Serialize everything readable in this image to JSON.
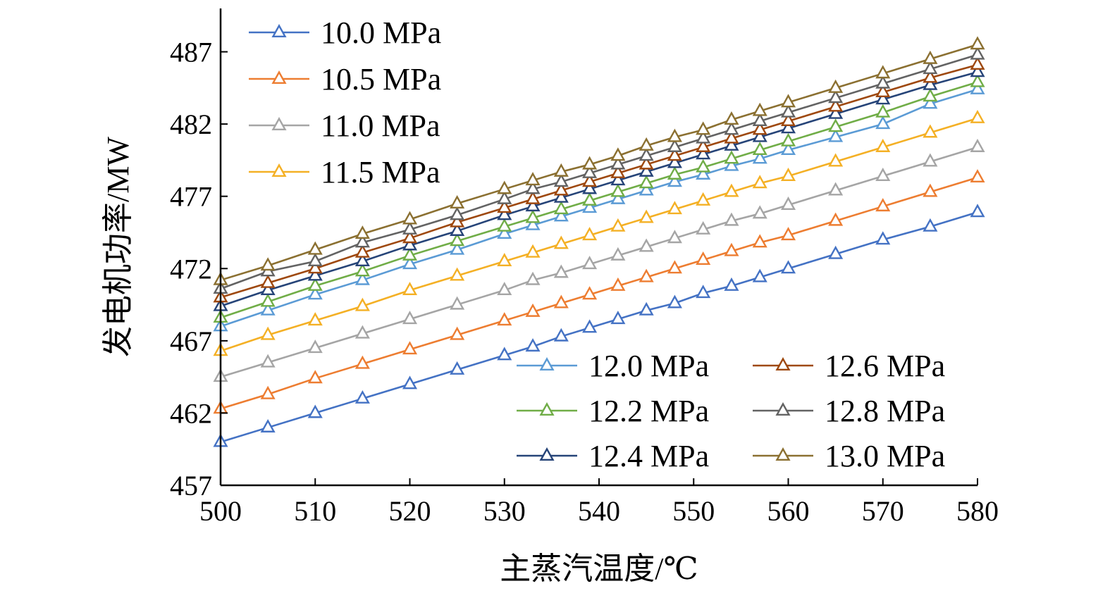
{
  "chart_data": {
    "type": "line",
    "title": "",
    "xlabel": "主蒸汽温度/℃",
    "ylabel": "发电机功率/MW",
    "xlim": [
      500,
      580
    ],
    "ylim": [
      457,
      490
    ],
    "xticks": [
      "500",
      "510",
      "520",
      "530",
      "540",
      "550",
      "560",
      "570",
      "580"
    ],
    "yticks": [
      "457",
      "462",
      "467",
      "472",
      "477",
      "482",
      "487"
    ],
    "x": [
      500,
      505,
      510,
      515,
      520,
      525,
      530,
      533,
      536,
      539,
      542,
      545,
      548,
      551,
      554,
      557,
      560,
      565,
      570,
      575,
      580
    ],
    "grid": false,
    "marker": "open-triangle",
    "legend": [
      {
        "position": "top-left",
        "columns": 1,
        "series": [
          "10.0 MPa",
          "10.5 MPa",
          "11.0 MPa",
          "11.5 MPa"
        ]
      },
      {
        "position": "bottom-right",
        "columns": 2,
        "series": [
          "12.0 MPa",
          "12.6 MPa",
          "12.2 MPa",
          "12.8 MPa",
          "12.4 MPa",
          "13.0 MPa"
        ]
      }
    ],
    "series": [
      {
        "name": "10.0 MPa",
        "color": "#4472C4",
        "values": [
          460.0,
          461.0,
          462.0,
          463.0,
          464.0,
          465.0,
          466.0,
          466.6,
          467.3,
          467.9,
          468.5,
          469.1,
          469.6,
          470.3,
          470.8,
          471.4,
          472.0,
          473.0,
          474.0,
          474.9,
          475.9
        ]
      },
      {
        "name": "10.5 MPa",
        "color": "#ED7D31",
        "values": [
          462.3,
          463.3,
          464.4,
          465.4,
          466.4,
          467.4,
          468.4,
          469.0,
          469.6,
          470.2,
          470.8,
          471.4,
          472.0,
          472.6,
          473.2,
          473.8,
          474.3,
          475.3,
          476.3,
          477.3,
          478.3
        ]
      },
      {
        "name": "11.0 MPa",
        "color": "#A5A5A5",
        "values": [
          464.5,
          465.5,
          466.5,
          467.5,
          468.5,
          469.5,
          470.5,
          471.2,
          471.7,
          472.3,
          472.9,
          473.5,
          474.1,
          474.7,
          475.3,
          475.8,
          476.4,
          477.4,
          478.4,
          479.4,
          480.4
        ]
      },
      {
        "name": "11.5 MPa",
        "color": "#F4B025",
        "values": [
          466.3,
          467.4,
          468.4,
          469.4,
          470.5,
          471.5,
          472.5,
          473.1,
          473.7,
          474.3,
          474.9,
          475.5,
          476.1,
          476.7,
          477.3,
          477.9,
          478.4,
          479.4,
          480.4,
          481.4,
          482.4
        ]
      },
      {
        "name": "12.0 MPa",
        "color": "#5B9BD5",
        "values": [
          468.0,
          469.1,
          470.2,
          471.2,
          472.3,
          473.3,
          474.4,
          475.0,
          475.6,
          476.2,
          476.8,
          477.4,
          478.0,
          478.5,
          479.1,
          479.6,
          480.2,
          481.1,
          482.0,
          483.4,
          484.4
        ]
      },
      {
        "name": "12.2 MPa",
        "color": "#70AD47",
        "values": [
          468.6,
          469.7,
          470.8,
          471.8,
          472.9,
          473.9,
          474.9,
          475.5,
          476.1,
          476.7,
          477.3,
          477.9,
          478.5,
          479.0,
          479.6,
          480.2,
          480.8,
          481.8,
          482.8,
          483.9,
          484.9
        ]
      },
      {
        "name": "12.4 MPa",
        "color": "#264478",
        "values": [
          469.4,
          470.5,
          471.5,
          472.5,
          473.6,
          474.6,
          475.7,
          476.3,
          476.9,
          477.5,
          478.1,
          478.7,
          479.3,
          479.9,
          480.5,
          481.1,
          481.7,
          482.7,
          483.7,
          484.7,
          485.6
        ]
      },
      {
        "name": "12.6 MPa",
        "color": "#9E480E",
        "values": [
          470.0,
          471.0,
          472.0,
          473.1,
          474.1,
          475.2,
          476.2,
          476.8,
          477.4,
          478.0,
          478.6,
          479.2,
          479.8,
          480.4,
          481.0,
          481.6,
          482.2,
          483.2,
          484.2,
          485.2,
          486.1
        ]
      },
      {
        "name": "12.8 MPa",
        "color": "#636363",
        "values": [
          470.6,
          471.8,
          472.5,
          473.8,
          474.7,
          475.7,
          476.8,
          477.5,
          478.0,
          478.6,
          479.2,
          479.8,
          480.4,
          481.0,
          481.6,
          482.2,
          482.8,
          483.8,
          484.8,
          485.8,
          486.8
        ]
      },
      {
        "name": "13.0 MPa",
        "color": "#8B7031",
        "values": [
          471.2,
          472.2,
          473.3,
          474.4,
          475.4,
          476.5,
          477.5,
          478.1,
          478.7,
          479.2,
          479.8,
          480.5,
          481.1,
          481.6,
          482.3,
          482.9,
          483.5,
          484.5,
          485.5,
          486.5,
          487.5
        ]
      }
    ]
  }
}
